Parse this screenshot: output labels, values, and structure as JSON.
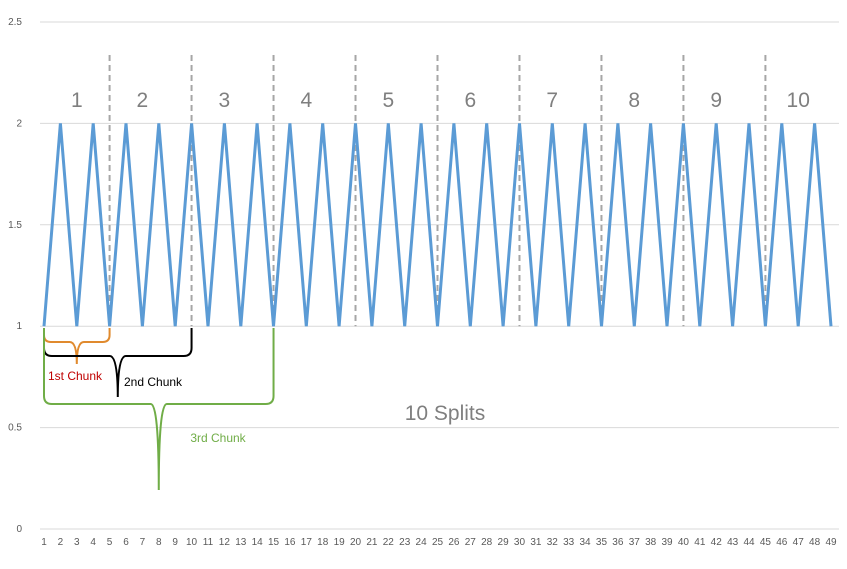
{
  "chart_data": {
    "type": "line",
    "x": [
      1,
      2,
      3,
      4,
      5,
      6,
      7,
      8,
      9,
      10,
      11,
      12,
      13,
      14,
      15,
      16,
      17,
      18,
      19,
      20,
      21,
      22,
      23,
      24,
      25,
      26,
      27,
      28,
      29,
      30,
      31,
      32,
      33,
      34,
      35,
      36,
      37,
      38,
      39,
      40,
      41,
      42,
      43,
      44,
      45,
      46,
      47,
      48,
      49
    ],
    "series": [
      {
        "values": [
          1,
          2,
          1,
          2,
          1,
          2,
          1,
          2,
          1,
          2,
          1,
          2,
          1,
          2,
          1,
          2,
          1,
          2,
          1,
          2,
          1,
          2,
          1,
          2,
          1,
          2,
          1,
          2,
          1,
          2,
          1,
          2,
          1,
          2,
          1,
          2,
          1,
          2,
          1,
          2,
          1,
          2,
          1,
          2,
          1,
          2,
          1,
          2,
          1
        ],
        "color": "#5b9bd5"
      }
    ],
    "ylim": [
      0,
      2.5
    ],
    "yticks": [
      0,
      0.5,
      1,
      1.5,
      2,
      2.5
    ],
    "ytick_labels": [
      "0",
      "0.5",
      "1",
      "1.5",
      "2",
      "2.5"
    ],
    "grid": "horizontal",
    "split_boundaries": [
      5,
      10,
      15,
      20,
      25,
      30,
      35,
      40,
      45
    ],
    "split_labels": [
      {
        "label": "1",
        "x": 3
      },
      {
        "label": "2",
        "x": 7
      },
      {
        "label": "3",
        "x": 12
      },
      {
        "label": "4",
        "x": 17
      },
      {
        "label": "5",
        "x": 22
      },
      {
        "label": "6",
        "x": 27
      },
      {
        "label": "7",
        "x": 32
      },
      {
        "label": "8",
        "x": 37
      },
      {
        "label": "9",
        "x": 42
      },
      {
        "label": "10",
        "x": 47
      }
    ],
    "chunks": [
      {
        "label": "1st Chunk",
        "from": 1,
        "to": 5,
        "color": "#e08a2e",
        "text_color": "#c00000"
      },
      {
        "label": "2nd Chunk",
        "from": 1,
        "to": 10,
        "color": "#000000",
        "text_color": "#000000"
      },
      {
        "label": "3rd Chunk",
        "from": 1,
        "to": 15,
        "color": "#70ad47",
        "text_color": "#70ad47"
      }
    ],
    "annotation": "10 Splits"
  }
}
